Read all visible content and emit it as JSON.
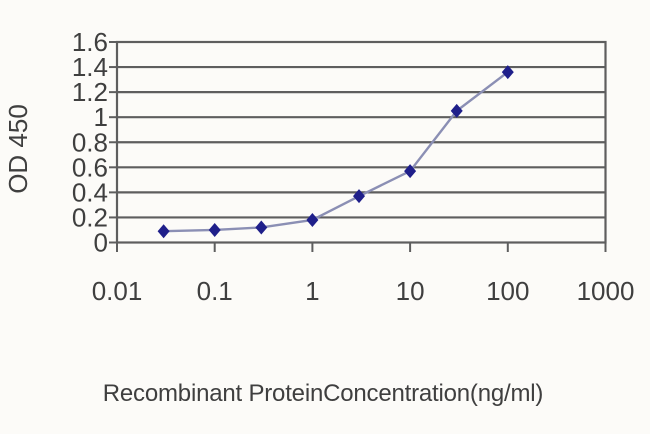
{
  "chart_data": {
    "type": "line",
    "title": "",
    "xlabel": "Recombinant ProteinConcentration(ng/ml)",
    "ylabel": "OD 450",
    "xscale": "log",
    "x": [
      0.03,
      0.1,
      0.3,
      1,
      3,
      10,
      30,
      100
    ],
    "series": [
      {
        "name": "OD 450",
        "values": [
          0.09,
          0.1,
          0.12,
          0.18,
          0.37,
          0.57,
          1.05,
          1.36
        ]
      }
    ],
    "xlim": [
      0.01,
      1000
    ],
    "ylim": [
      0,
      1.6
    ],
    "xtick_labels": [
      "0.01",
      "0.1",
      "1",
      "10",
      "100",
      "1000"
    ],
    "ytick_labels": [
      "0",
      "0.2",
      "0.4",
      "0.6",
      "0.8",
      "1",
      "1.2",
      "1.4",
      "1.6"
    ],
    "grid": "horizontal",
    "legend": "none",
    "marker": "diamond"
  },
  "style": {
    "marker_color": "#1f1f8a",
    "line_color": "#8b8fb4",
    "grid_color": "#5e5e5e",
    "text_color": "#3f3f3f",
    "background": "#fcfbf8"
  }
}
